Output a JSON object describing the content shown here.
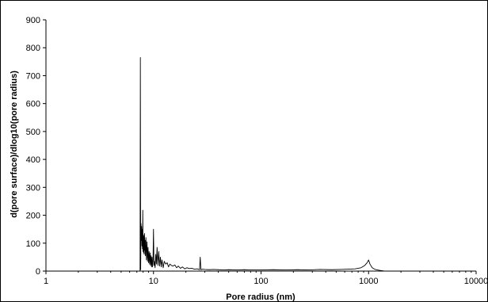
{
  "chart_data": {
    "type": "line",
    "title": "",
    "xlabel": "Pore radius (nm)",
    "ylabel": "d(pore surface)/dlog10(pore radius)",
    "xscale": "log",
    "xlim": [
      1,
      10000
    ],
    "ylim": [
      0,
      900
    ],
    "x_ticks": [
      1,
      10,
      100,
      1000,
      10000
    ],
    "x_tick_labels": [
      "1",
      "10",
      "100",
      "1000",
      "10000"
    ],
    "y_ticks": [
      0,
      100,
      200,
      300,
      400,
      500,
      600,
      700,
      800,
      900
    ],
    "y_tick_labels": [
      "0",
      "100",
      "200",
      "300",
      "400",
      "500",
      "600",
      "700",
      "800",
      "900"
    ],
    "grid": false,
    "legend": "none",
    "series": [
      {
        "color": "#000000",
        "x": [
          7.5,
          7.55,
          7.6,
          7.65,
          7.7,
          7.75,
          7.8,
          7.85,
          7.9,
          7.95,
          8.0,
          8.05,
          8.1,
          8.15,
          8.2,
          8.25,
          8.3,
          8.35,
          8.4,
          8.5,
          8.6,
          8.7,
          8.8,
          8.9,
          9.0,
          9.1,
          9.2,
          9.3,
          9.4,
          9.5,
          9.6,
          9.7,
          9.8,
          9.9,
          10.0,
          10.1,
          10.2,
          10.35,
          10.5,
          10.65,
          10.8,
          11.0,
          11.2,
          11.4,
          11.6,
          11.8,
          12.0,
          12.3,
          12.6,
          13.0,
          13.4,
          13.8,
          14.2,
          14.7,
          15.2,
          15.8,
          16.4,
          17.0,
          17.8,
          18.6,
          19.5,
          20.5,
          21.5,
          22.7,
          24.0,
          25.5,
          26.8,
          27.2,
          27.6,
          28.5,
          30.0,
          33.0,
          36.0,
          40.0,
          45.0,
          50.0,
          60.0,
          70.0,
          80.0,
          100.0,
          130.0,
          170.0,
          220.0,
          280.0,
          350.0,
          450.0,
          550.0,
          650.0,
          750.0,
          850.0,
          920.0,
          970.0,
          1000.0,
          1030.0,
          1080.0,
          1150.0,
          1250.0,
          1400.0
        ],
        "y": [
          0,
          765,
          5,
          170,
          110,
          160,
          90,
          150,
          80,
          218,
          70,
          130,
          65,
          125,
          60,
          135,
          75,
          110,
          55,
          120,
          40,
          105,
          35,
          85,
          30,
          70,
          25,
          65,
          20,
          55,
          15,
          50,
          15,
          40,
          150,
          20,
          35,
          12,
          60,
          25,
          85,
          20,
          70,
          18,
          50,
          15,
          40,
          12,
          35,
          25,
          30,
          15,
          25,
          20,
          18,
          22,
          12,
          18,
          10,
          15,
          8,
          12,
          9,
          10,
          7,
          8,
          5,
          50,
          5,
          7,
          6,
          5,
          6,
          5,
          4,
          5,
          4,
          5,
          4,
          4,
          5,
          4,
          5,
          4,
          6,
          5,
          6,
          7,
          8,
          12,
          20,
          30,
          40,
          25,
          12,
          6,
          3,
          0
        ]
      }
    ]
  }
}
